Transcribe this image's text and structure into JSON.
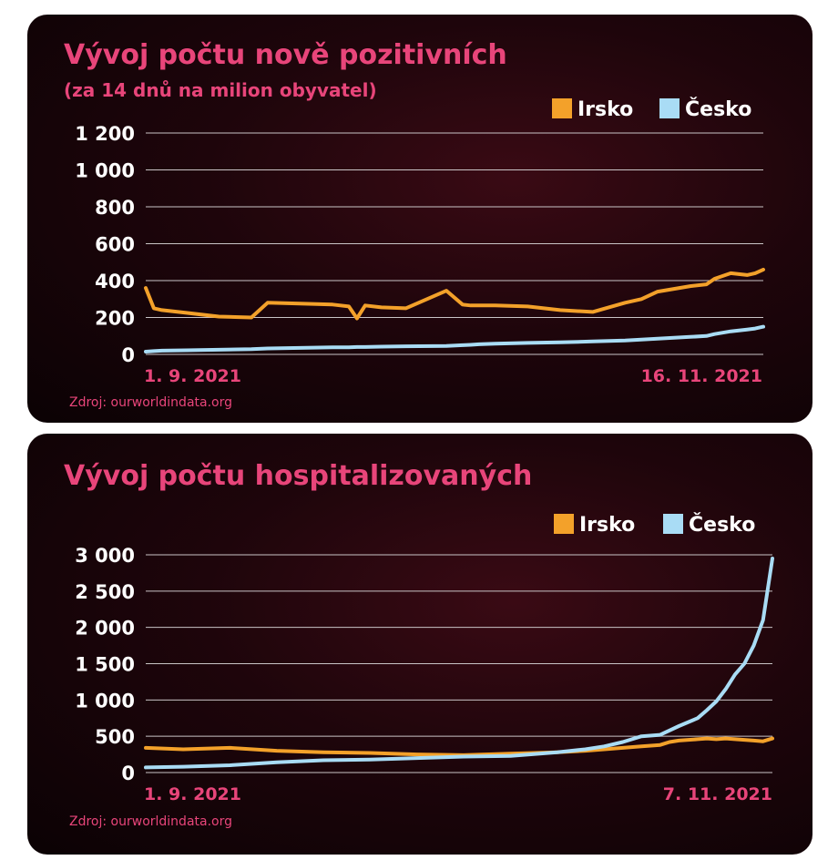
{
  "colors": {
    "irsko": "#f3a12a",
    "cesko": "#a9dcf5",
    "accent": "#e8457a"
  },
  "chart_data": [
    {
      "type": "line",
      "title": "Vývoj počtu nově pozitivních",
      "subtitle": "(za 14 dnů na milion obyvatel)",
      "legend_position": "top-right",
      "grid": true,
      "ylim": [
        0,
        1200
      ],
      "yticks": [
        0,
        200,
        400,
        600,
        800,
        1000,
        1200
      ],
      "ytick_labels": [
        "0",
        "200",
        "400",
        "600",
        "800",
        "1 000",
        "1 200"
      ],
      "x_start_label": "1. 9. 2021",
      "x_end_label": "16. 11. 2021",
      "source": "Zdroj: ourworldindata.org",
      "x": [
        "2021-09-01",
        "2021-09-02",
        "2021-09-03",
        "2021-09-06",
        "2021-09-10",
        "2021-09-14",
        "2021-09-16",
        "2021-09-20",
        "2021-09-24",
        "2021-09-26",
        "2021-09-27",
        "2021-09-28",
        "2021-09-30",
        "2021-10-03",
        "2021-10-08",
        "2021-10-10",
        "2021-10-11",
        "2021-10-12",
        "2021-10-14",
        "2021-10-18",
        "2021-10-22",
        "2021-10-26",
        "2021-10-30",
        "2021-11-01",
        "2021-11-03",
        "2021-11-05",
        "2021-11-07",
        "2021-11-09",
        "2021-11-10",
        "2021-11-12",
        "2021-11-14",
        "2021-11-15",
        "2021-11-16"
      ],
      "series": [
        {
          "name": "Irsko",
          "color_key": "irsko",
          "values": [
            360,
            250,
            240,
            225,
            205,
            200,
            280,
            275,
            270,
            260,
            195,
            265,
            255,
            250,
            345,
            270,
            265,
            265,
            265,
            260,
            240,
            230,
            280,
            300,
            340,
            355,
            370,
            380,
            410,
            440,
            430,
            440,
            460
          ]
        },
        {
          "name": "Česko",
          "color_key": "cesko",
          "values": [
            15,
            18,
            20,
            22,
            25,
            28,
            32,
            35,
            38,
            38,
            40,
            40,
            42,
            44,
            46,
            50,
            52,
            55,
            58,
            62,
            65,
            70,
            75,
            80,
            85,
            90,
            95,
            100,
            110,
            125,
            135,
            140,
            150
          ]
        }
      ]
    },
    {
      "type": "line",
      "title": "Vývoj počtu hospitalizovaných",
      "legend_position": "top-right",
      "grid": true,
      "ylim": [
        0,
        3000
      ],
      "yticks": [
        0,
        500,
        1000,
        1500,
        2000,
        2500,
        3000
      ],
      "ytick_labels": [
        "0",
        "500",
        "1 000",
        "1 500",
        "2 000",
        "2 500",
        "3 000"
      ],
      "x_start_label": "1. 9. 2021",
      "x_end_label": "7. 11. 2021",
      "source": "Zdroj: ourworldindata.org",
      "x": [
        "2021-09-01",
        "2021-09-05",
        "2021-09-10",
        "2021-09-15",
        "2021-09-20",
        "2021-09-25",
        "2021-09-30",
        "2021-10-05",
        "2021-10-10",
        "2021-10-15",
        "2021-10-18",
        "2021-10-20",
        "2021-10-22",
        "2021-10-24",
        "2021-10-26",
        "2021-10-27",
        "2021-10-28",
        "2021-10-30",
        "2021-10-31",
        "2021-11-01",
        "2021-11-02",
        "2021-11-03",
        "2021-11-04",
        "2021-11-05",
        "2021-11-06",
        "2021-11-07"
      ],
      "series": [
        {
          "name": "Irsko",
          "color_key": "irsko",
          "values": [
            340,
            320,
            340,
            300,
            280,
            270,
            250,
            240,
            260,
            280,
            300,
            320,
            340,
            360,
            380,
            420,
            440,
            460,
            470,
            460,
            470,
            460,
            450,
            440,
            430,
            470
          ]
        },
        {
          "name": "Česko",
          "color_key": "cesko",
          "values": [
            70,
            80,
            100,
            140,
            170,
            180,
            200,
            220,
            230,
            280,
            320,
            360,
            420,
            500,
            520,
            580,
            640,
            750,
            860,
            980,
            1150,
            1350,
            1500,
            1750,
            2100,
            2950
          ]
        }
      ]
    }
  ]
}
